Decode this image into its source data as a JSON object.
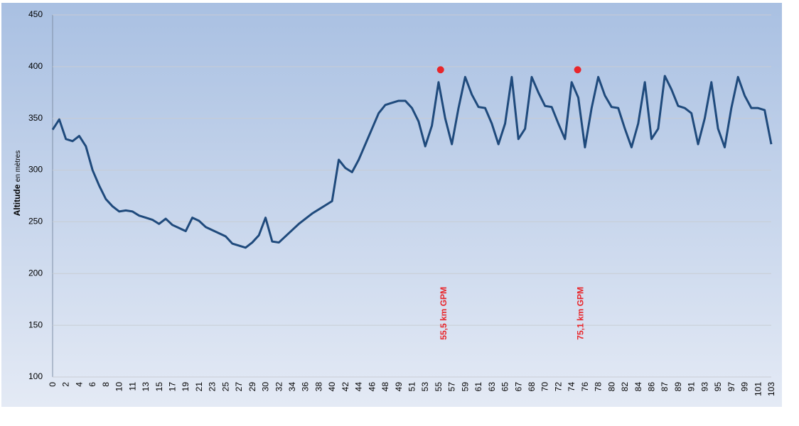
{
  "chart_data": {
    "type": "line",
    "y_label": "Altitude",
    "y_label_unit": "en mètres",
    "categories": [
      "0",
      null,
      "2",
      null,
      "4",
      null,
      "6",
      null,
      "8",
      null,
      "10",
      null,
      "11",
      null,
      "13",
      null,
      "15",
      null,
      "17",
      null,
      "19",
      null,
      "21",
      null,
      "23",
      null,
      "25",
      null,
      "27",
      null,
      "29",
      null,
      "30",
      null,
      "32",
      null,
      "34",
      null,
      "36",
      null,
      "38",
      null,
      "40",
      null,
      "42",
      null,
      "44",
      null,
      "46",
      null,
      "48",
      null,
      "49",
      null,
      "51",
      null,
      "53",
      null,
      "55",
      null,
      "57",
      null,
      "59",
      null,
      "61",
      null,
      "63",
      null,
      "65",
      null,
      "67",
      null,
      "68",
      null,
      "70",
      null,
      "72",
      null,
      "74",
      null,
      "76",
      null,
      "78",
      null,
      "80",
      null,
      "82",
      null,
      "84",
      null,
      "86",
      null,
      "87",
      null,
      "89",
      null,
      "91",
      null,
      "93",
      null,
      "95",
      null,
      "97",
      null,
      "99",
      null,
      "101",
      null,
      "103"
    ],
    "values": [
      339,
      349,
      330,
      328,
      333,
      323,
      300,
      285,
      272,
      265,
      260,
      261,
      260,
      256,
      254,
      252,
      248,
      253,
      247,
      244,
      241,
      254,
      251,
      245,
      242,
      239,
      236,
      229,
      227,
      225,
      230,
      237,
      254,
      231,
      230,
      236,
      242,
      248,
      253,
      258,
      262,
      266,
      270,
      310,
      302,
      298,
      310,
      325,
      340,
      355,
      363,
      365,
      367,
      367,
      360,
      347,
      323,
      343,
      385,
      350,
      325,
      360,
      390,
      373,
      361,
      360,
      345,
      325,
      345,
      390,
      330,
      340,
      390,
      375,
      362,
      361,
      345,
      330,
      385,
      370,
      322,
      360,
      390,
      372,
      361,
      360,
      340,
      322,
      345,
      385,
      330,
      340,
      391,
      378,
      362,
      360,
      355,
      325,
      350,
      385,
      340,
      322,
      360,
      390,
      372,
      360,
      360,
      358,
      325
    ],
    "color": "#1f4a7c",
    "markers": [
      {
        "label": "55,5 km GPM",
        "x": 58.3,
        "value": 397
      },
      {
        "label": "75,1 km GPM",
        "x": 78.9,
        "value": 397
      }
    ],
    "marker_color": "#e8262b",
    "ylim": [
      100,
      450
    ],
    "yticks": [
      100,
      150,
      200,
      250,
      300,
      350,
      400,
      450
    ],
    "grid": true
  }
}
